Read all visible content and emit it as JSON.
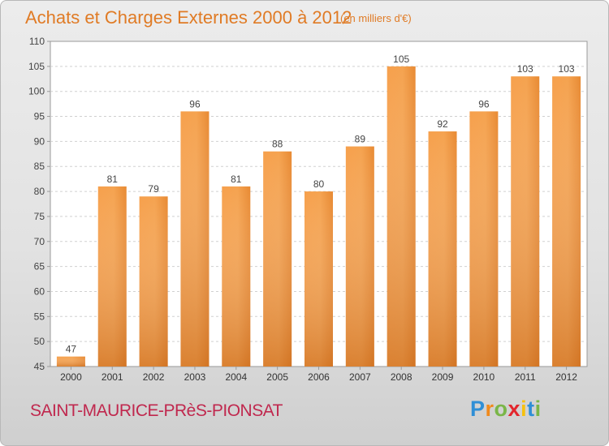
{
  "title": "Achats et Charges Externes 2000 à 2012",
  "subtitle": "(en milliers d'€)",
  "location": "SAINT-MAURICE-PRèS-PIONSAT",
  "logo": {
    "letters": [
      "P",
      "r",
      "o",
      "x",
      "i",
      "t",
      "i"
    ],
    "colors": [
      "#2f8fd6",
      "#f08a1c",
      "#7ab648",
      "#e3262d",
      "#f6c10f",
      "#2f8fd6",
      "#7ab648"
    ]
  },
  "colors": {
    "bar": "#f08a2c",
    "bar_light": "#f7a552",
    "bar_dark": "#d4701a",
    "title": "#e07b25",
    "location": "#c0284e"
  },
  "chart_data": {
    "type": "bar",
    "title": "Achats et Charges Externes 2000 à 2012",
    "subtitle": "(en milliers d'€)",
    "categories": [
      "2000",
      "2001",
      "2002",
      "2003",
      "2004",
      "2005",
      "2006",
      "2007",
      "2008",
      "2009",
      "2010",
      "2011",
      "2012"
    ],
    "values": [
      47,
      81,
      79,
      96,
      81,
      88,
      80,
      89,
      105,
      92,
      96,
      103,
      103
    ],
    "ylim": [
      45,
      110
    ],
    "yticks": [
      45,
      50,
      55,
      60,
      65,
      70,
      75,
      80,
      85,
      90,
      95,
      100,
      105,
      110
    ],
    "grid": true,
    "data_labels": true
  }
}
